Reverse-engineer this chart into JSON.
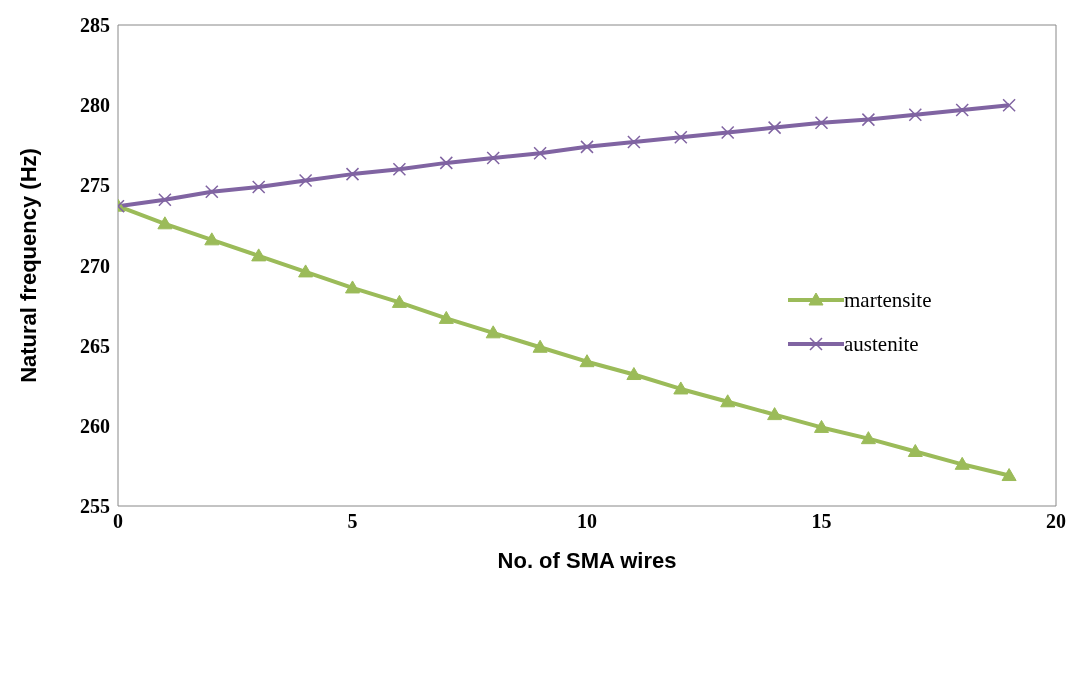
{
  "chart_data": {
    "type": "line",
    "xlabel": "No. of SMA wires",
    "ylabel": "Natural frequency (Hz)",
    "x": [
      0,
      1,
      2,
      3,
      4,
      5,
      6,
      7,
      8,
      9,
      10,
      11,
      12,
      13,
      14,
      15,
      16,
      17,
      18,
      19
    ],
    "series": [
      {
        "name": "martensite",
        "color": "#9bbb59",
        "marker": "triangle",
        "values": [
          273.7,
          272.6,
          271.6,
          270.6,
          269.6,
          268.6,
          267.7,
          266.7,
          265.8,
          264.9,
          264.0,
          263.2,
          262.3,
          261.5,
          260.7,
          259.9,
          259.2,
          258.4,
          257.6,
          256.9
        ]
      },
      {
        "name": "austenite",
        "color": "#8064a2",
        "marker": "cross",
        "values": [
          273.7,
          274.1,
          274.6,
          274.9,
          275.3,
          275.7,
          276.0,
          276.4,
          276.7,
          277.0,
          277.4,
          277.7,
          278.0,
          278.3,
          278.6,
          278.9,
          279.1,
          279.4,
          279.7,
          280.0
        ]
      }
    ],
    "xlim": [
      0,
      20
    ],
    "xticks": [
      0,
      5,
      10,
      15,
      20
    ],
    "ylim": [
      255,
      285
    ],
    "yticks": [
      255,
      260,
      265,
      270,
      275,
      280,
      285
    ],
    "grid": false,
    "legend": "right",
    "line_style": "solid"
  }
}
